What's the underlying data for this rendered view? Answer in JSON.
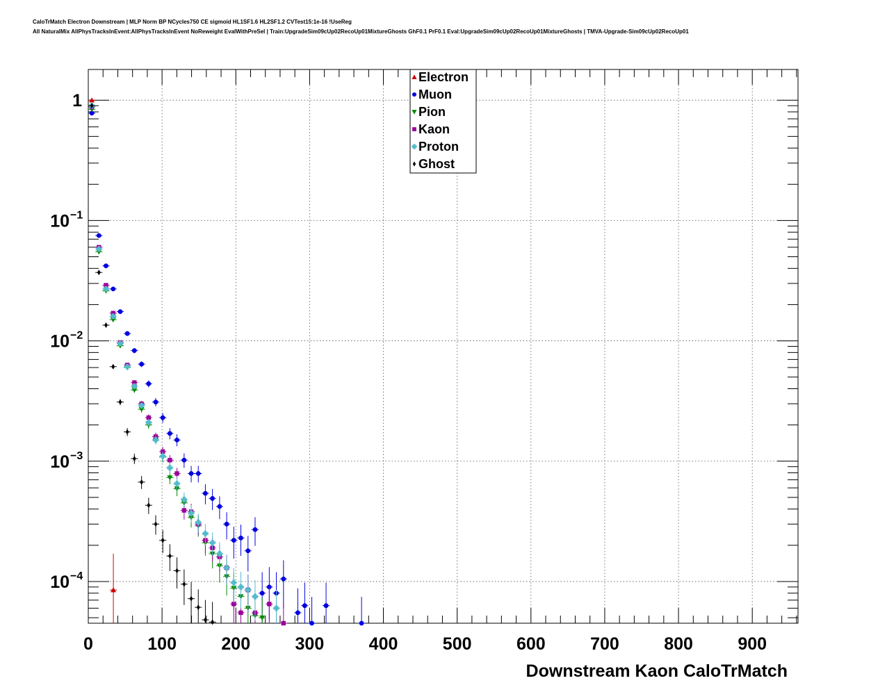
{
  "header": {
    "line1": "CaloTrMatch Electron Downstream | MLP Norm BP NCycles750 CE sigmoid HL1SF1.6 HL2SF1.2 CVTest15:1e-16 !UseReg",
    "line2": "All NaturalMix AllPhysTracksInEvent:AllPhysTracksInEvent NoReweight EvalWithPreSel | Train:UpgradeSim09cUp02RecoUp01MixtureGhosts GhF0.1 PrF0.1 Eval:UpgradeSim09cUp02RecoUp01MixtureGhosts | TMVA-Upgrade-Sim09cUp02RecoUp01"
  },
  "chart_data": {
    "type": "scatter",
    "xlabel": "Downstream Kaon CaloTrMatch",
    "ylabel": "",
    "xlim": [
      0,
      962
    ],
    "ylim": [
      4.5e-05,
      1.8
    ],
    "y_scale": "log",
    "grid": true,
    "legend_position": "top-center",
    "x_ticks": [
      "0",
      "100",
      "200",
      "300",
      "400",
      "500",
      "600",
      "700",
      "800",
      "900"
    ],
    "x_tick_values": [
      0,
      100,
      200,
      300,
      400,
      500,
      600,
      700,
      800,
      900
    ],
    "y_ticks": [
      {
        "value": 1,
        "base": "1",
        "exp": ""
      },
      {
        "value": 0.1,
        "base": "10",
        "exp": "−1"
      },
      {
        "value": 0.01,
        "base": "10",
        "exp": "−2"
      },
      {
        "value": 0.001,
        "base": "10",
        "exp": "−3"
      },
      {
        "value": 0.0001,
        "base": "10",
        "exp": "−4"
      }
    ],
    "series": [
      {
        "name": "Electron",
        "color": "#cc0000",
        "marker": "triangle-up",
        "points": [
          [
            4.8,
            1.0
          ],
          [
            34,
            8.5e-05
          ]
        ],
        "errors": [
          [
            0.97,
            1.03
          ],
          [
            2e-05,
            0.00017
          ]
        ]
      },
      {
        "name": "Muon",
        "color": "#0000dd",
        "marker": "circle",
        "points": [
          [
            4.8,
            0.78
          ],
          [
            14.4,
            0.075
          ],
          [
            24,
            0.042
          ],
          [
            33.7,
            0.027
          ],
          [
            43.3,
            0.0175
          ],
          [
            52.9,
            0.0115
          ],
          [
            62.5,
            0.0083
          ],
          [
            72.2,
            0.0064
          ],
          [
            81.8,
            0.0044
          ],
          [
            91.4,
            0.0031
          ],
          [
            101,
            0.0023
          ],
          [
            110.6,
            0.0017
          ],
          [
            120.2,
            0.0015
          ],
          [
            129.9,
            0.00102
          ],
          [
            139.5,
            0.00079
          ],
          [
            149.1,
            0.00079
          ],
          [
            158.7,
            0.00054
          ],
          [
            168.3,
            0.00049
          ],
          [
            178,
            0.00042
          ],
          [
            187.6,
            0.0003
          ],
          [
            197.2,
            0.00022
          ],
          [
            206.8,
            0.00023
          ],
          [
            216.5,
            0.00018
          ],
          [
            226.1,
            0.00027
          ],
          [
            235.7,
            8e-05
          ],
          [
            245.3,
            9e-05
          ],
          [
            254.9,
            8e-05
          ],
          [
            264.6,
            0.000105
          ],
          [
            284,
            5.5e-05
          ],
          [
            293.4,
            6.3e-05
          ],
          [
            303,
            4.5e-05
          ],
          [
            322.3,
            6.3e-05
          ],
          [
            370.4,
            4.5e-05
          ]
        ]
      },
      {
        "name": "Pion",
        "color": "#008800",
        "marker": "triangle-down",
        "points": [
          [
            4.8,
            0.84
          ],
          [
            14.4,
            0.055
          ],
          [
            24,
            0.026
          ],
          [
            33.7,
            0.015
          ],
          [
            43.3,
            0.0091
          ],
          [
            52.9,
            0.006
          ],
          [
            62.5,
            0.0039
          ],
          [
            72.2,
            0.0027
          ],
          [
            81.8,
            0.002
          ],
          [
            91.4,
            0.0015
          ],
          [
            101,
            0.00108
          ],
          [
            110.6,
            0.00073
          ],
          [
            120.2,
            0.00059
          ],
          [
            129.9,
            0.00045
          ],
          [
            139.5,
            0.00034
          ],
          [
            149.1,
            0.00029
          ],
          [
            158.7,
            0.00021
          ],
          [
            168.3,
            0.00017
          ],
          [
            178,
            0.000135
          ],
          [
            187.6,
            0.00011
          ],
          [
            197.2,
            8.8e-05
          ],
          [
            206.8,
            7.5e-05
          ],
          [
            216.5,
            6e-05
          ],
          [
            226.1,
            5.2e-05
          ],
          [
            235.7,
            5e-05
          ]
        ]
      },
      {
        "name": "Kaon",
        "color": "#990099",
        "marker": "square",
        "points": [
          [
            4.8,
            0.88
          ],
          [
            14.4,
            0.06
          ],
          [
            24,
            0.029
          ],
          [
            33.7,
            0.017
          ],
          [
            43.3,
            0.0097
          ],
          [
            52.9,
            0.0063
          ],
          [
            62.5,
            0.0045
          ],
          [
            72.2,
            0.003
          ],
          [
            81.8,
            0.0023
          ],
          [
            91.4,
            0.0016
          ],
          [
            101,
            0.0012
          ],
          [
            110.6,
            0.00102
          ],
          [
            120.2,
            0.00079
          ],
          [
            129.9,
            0.00039
          ],
          [
            139.5,
            0.00038
          ],
          [
            149.1,
            0.0003
          ],
          [
            158.7,
            0.00022
          ],
          [
            168.3,
            0.00019
          ],
          [
            178,
            0.00016
          ],
          [
            187.6,
            0.00013
          ],
          [
            197.2,
            6.5e-05
          ],
          [
            206.8,
            5.5e-05
          ],
          [
            216.5,
            8.5e-05
          ],
          [
            226.1,
            5.5e-05
          ],
          [
            245.3,
            6.5e-05
          ],
          [
            264.6,
            4.5e-05
          ]
        ]
      },
      {
        "name": "Proton",
        "color": "#55bbcc",
        "marker": "cross",
        "points": [
          [
            4.8,
            0.9
          ],
          [
            14.4,
            0.058
          ],
          [
            24,
            0.027
          ],
          [
            33.7,
            0.016
          ],
          [
            43.3,
            0.0095
          ],
          [
            52.9,
            0.0061
          ],
          [
            62.5,
            0.0042
          ],
          [
            72.2,
            0.0029
          ],
          [
            81.8,
            0.0021
          ],
          [
            91.4,
            0.0015
          ],
          [
            101,
            0.0011
          ],
          [
            110.6,
            0.00088
          ],
          [
            120.2,
            0.00065
          ],
          [
            129.9,
            0.00048
          ],
          [
            139.5,
            0.00037
          ],
          [
            149.1,
            0.00031
          ],
          [
            158.7,
            0.00025
          ],
          [
            168.3,
            0.00021
          ],
          [
            178,
            0.00017
          ],
          [
            187.6,
            0.00013
          ],
          [
            197.2,
            9.8e-05
          ],
          [
            206.8,
            9e-05
          ],
          [
            216.5,
            8.5e-05
          ],
          [
            226.1,
            7.5e-05
          ],
          [
            254.9,
            6e-05
          ]
        ]
      },
      {
        "name": "Ghost",
        "color": "#000000",
        "marker": "diamond",
        "points": [
          [
            4.8,
            0.9
          ],
          [
            14.4,
            0.037
          ],
          [
            24,
            0.0135
          ],
          [
            33.7,
            0.0061
          ],
          [
            43.3,
            0.0031
          ],
          [
            52.9,
            0.00175
          ],
          [
            62.5,
            0.00105
          ],
          [
            72.2,
            0.00067
          ],
          [
            81.8,
            0.00043
          ],
          [
            91.4,
            0.0003
          ],
          [
            101,
            0.00022
          ],
          [
            110.6,
            0.000163
          ],
          [
            120.2,
            0.000123
          ],
          [
            129.9,
            9.5e-05
          ],
          [
            139.5,
            7.2e-05
          ],
          [
            149.1,
            6.1e-05
          ],
          [
            158.7,
            4.8e-05
          ],
          [
            168.3,
            4.6e-05
          ]
        ]
      }
    ]
  }
}
